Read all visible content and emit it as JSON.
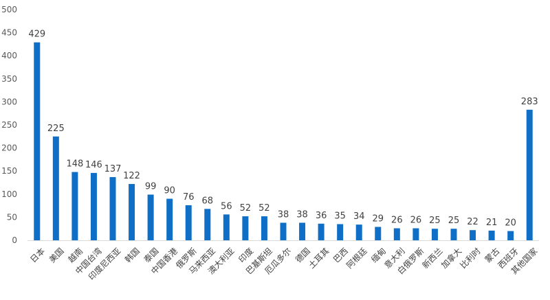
{
  "chart_data": {
    "type": "bar",
    "title": "",
    "xlabel": "",
    "ylabel": "",
    "ylim": [
      0,
      500
    ],
    "yticks": [
      0,
      50,
      100,
      150,
      200,
      250,
      300,
      350,
      400,
      450,
      500
    ],
    "grid": false,
    "legend": "none",
    "bar_color": "#0f6fc6",
    "categories": [
      "日本",
      "美国",
      "越南",
      "中国台湾",
      "印度尼西亚",
      "韩国",
      "泰国",
      "中国香港",
      "俄罗斯",
      "马来西亚",
      "澳大利亚",
      "印度",
      "巴基斯坦",
      "厄瓜多尔",
      "德国",
      "土耳其",
      "巴西",
      "阿根廷",
      "缅甸",
      "意大利",
      "白俄罗斯",
      "新西兰",
      "加拿大",
      "比利时",
      "蒙古",
      "西班牙",
      "其他国家"
    ],
    "values": [
      429,
      225,
      148,
      146,
      137,
      122,
      99,
      90,
      76,
      68,
      56,
      52,
      52,
      38,
      38,
      36,
      35,
      34,
      29,
      26,
      26,
      25,
      25,
      22,
      21,
      20,
      283
    ]
  }
}
